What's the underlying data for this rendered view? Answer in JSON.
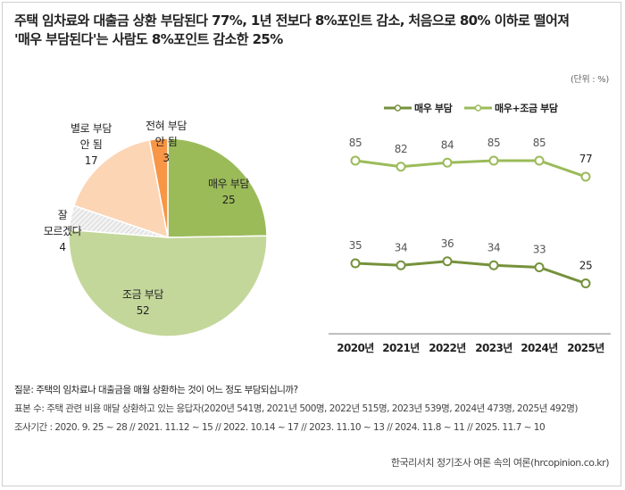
{
  "title_lines": [
    "주택 임차료와 대출금 상환 부담된다 77%, 1년 전보다 8%포인트 감소, 처음으로 80% 이하로 떨어져",
    "'매우 부담된다'는 사람도 8%포인트 감소한 25%"
  ],
  "unit": "(단위 : %)",
  "colors": {
    "very_burden": "#9bbb59",
    "somewhat_burden": "#c4d79b",
    "not_much": "#fcd5b5",
    "not_at_all": "#f79646",
    "dont_know": "#e6e6e6",
    "line_very": "#76923c",
    "line_total": "#9bbb59"
  },
  "chart_data": [
    {
      "type": "pie",
      "title": "",
      "slices": [
        {
          "label": "매우 부담",
          "value": 25,
          "color": "#9bbb59"
        },
        {
          "label": "조금 부담",
          "value": 52,
          "color": "#c4d79b"
        },
        {
          "label": "잘 모르겠다",
          "value": 4,
          "color": "#e6e6e6",
          "pattern": "hatch"
        },
        {
          "label": "별로 부담 안 됨",
          "value": 17,
          "color": "#fcd5b5"
        },
        {
          "label": "전혀 부담 안 됨",
          "value": 3,
          "color": "#f79646"
        }
      ],
      "label_lines": {
        "매우 부담": [
          "매우 부담",
          "25"
        ],
        "조금 부담": [
          "조금 부담",
          "52"
        ],
        "잘 모르겠다": [
          "잘",
          "모르겠다",
          "4"
        ],
        "별로 부담 안 됨": [
          "별로 부담",
          "안 됨",
          "17"
        ],
        "전혀 부담 안 됨": [
          "전혀 부담",
          "안 됨",
          "3"
        ]
      },
      "start": "12 o'clock",
      "direction": "clockwise"
    },
    {
      "type": "line",
      "title": "",
      "xlabel": "",
      "ylabel": "",
      "categories": [
        "2020년",
        "2021년",
        "2022년",
        "2023년",
        "2024년",
        "2025년"
      ],
      "series": [
        {
          "name": "매우 부담",
          "values": [
            35,
            34,
            36,
            34,
            33,
            25
          ],
          "color": "#76923c"
        },
        {
          "name": "매우+조금 부담",
          "values": [
            85,
            82,
            84,
            85,
            85,
            77
          ],
          "color": "#9bbb59"
        }
      ],
      "legend": "top-center",
      "grid": false,
      "y_axis_visible": false
    }
  ],
  "notes": {
    "question": "질문:  주택의 임차료나 대출금을 매월 상환하는 것이 어느 정도 부담되십니까?",
    "sample": "표본 수: 주택 관련 비용 매달 상환하고 있는 응답자(2020년 541명, 2021년 500명, 2022년 515명, 2023년 539명, 2024년 473명, 2025년 492명)",
    "period": "조사기간 : 2020. 9. 25 ~ 28 // 2021. 11.12 ~ 15 // 2022. 10.14 ~ 17 // 2023. 11.10 ~ 13 // 2024. 11.8 ~ 11 // 2025. 11.7 ~ 10"
  },
  "source": "한국리서치 정기조사 여론 속의 여론(hrcopinion.co.kr)"
}
